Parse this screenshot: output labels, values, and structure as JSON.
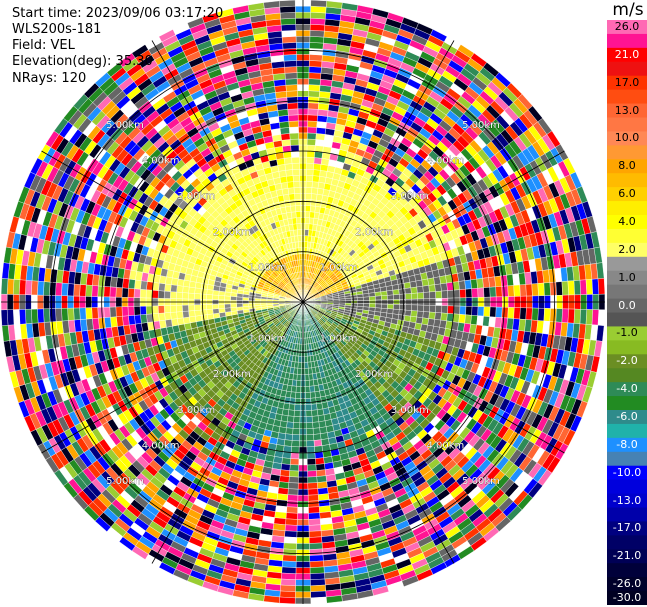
{
  "header": {
    "start_time": "Start time: 2023/09/06 03:17:20",
    "site": "WLS200s-181",
    "field": "Field: VEL",
    "elevation": "Elevation(deg): 35.30",
    "nrays": "NRays: 120"
  },
  "colorbar": {
    "unit": "m/s",
    "levels": [
      {
        "label": "26.0",
        "color": "#ff69b4"
      },
      {
        "label": "",
        "color": "#ff1493"
      },
      {
        "label": "21.0",
        "color": "#ff0000"
      },
      {
        "label": "",
        "color": "#ee1111"
      },
      {
        "label": "17.0",
        "color": "#ff3300"
      },
      {
        "label": "",
        "color": "#ff4d11"
      },
      {
        "label": "13.0",
        "color": "#ff6633"
      },
      {
        "label": "",
        "color": "#ff7744"
      },
      {
        "label": "10.0",
        "color": "#ff8855"
      },
      {
        "label": "",
        "color": "#ff9933"
      },
      {
        "label": "8.0",
        "color": "#ffa500"
      },
      {
        "label": "",
        "color": "#ffbb00"
      },
      {
        "label": "6.0",
        "color": "#ffd000"
      },
      {
        "label": "",
        "color": "#ffee00"
      },
      {
        "label": "4.0",
        "color": "#ffff00"
      },
      {
        "label": "",
        "color": "#ffff33"
      },
      {
        "label": "2.0",
        "color": "#ffff66"
      },
      {
        "label": "",
        "color": "#999999"
      },
      {
        "label": "1.0",
        "color": "#888888"
      },
      {
        "label": "",
        "color": "#777777"
      },
      {
        "label": "0.0",
        "color": "#666666"
      },
      {
        "label": "",
        "color": "#555555"
      },
      {
        "label": "-1.0",
        "color": "#9acd32"
      },
      {
        "label": "",
        "color": "#88bb22"
      },
      {
        "label": "-2.0",
        "color": "#6b8e23"
      },
      {
        "label": "",
        "color": "#558822"
      },
      {
        "label": "-4.0",
        "color": "#2e8b57"
      },
      {
        "label": "",
        "color": "#228b22"
      },
      {
        "label": "-6.0",
        "color": "#2e8b8b"
      },
      {
        "label": "",
        "color": "#20b2aa"
      },
      {
        "label": "-8.0",
        "color": "#1e90ff"
      },
      {
        "label": "",
        "color": "#4682b4"
      },
      {
        "label": "-10.0",
        "color": "#0000ff"
      },
      {
        "label": "",
        "color": "#0000dd"
      },
      {
        "label": "-13.0",
        "color": "#0000cd"
      },
      {
        "label": "",
        "color": "#0000aa"
      },
      {
        "label": "-17.0",
        "color": "#000080"
      },
      {
        "label": "",
        "color": "#000066"
      },
      {
        "label": "-21.0",
        "color": "#000055"
      },
      {
        "label": "",
        "color": "#00003a"
      },
      {
        "label": "-26.0",
        "color": "#00002a"
      },
      {
        "label": "-30.0",
        "color": "#000022"
      }
    ]
  },
  "chart_data": {
    "type": "heatmap",
    "title": "",
    "nrays": 120,
    "range_unit": "km",
    "max_range_km": 6,
    "range_rings_km": [
      1,
      2,
      3,
      4,
      5
    ],
    "ring_labels": [
      "1.00km",
      "2.00km",
      "3.00km",
      "4.00km",
      "5.00km"
    ],
    "spokes_deg": [
      0,
      30,
      60,
      90,
      120,
      150,
      180,
      210,
      240,
      270,
      300,
      330
    ],
    "velocity_field_summary": [
      {
        "region": "north sector near range (0-1 km)",
        "approx_ms": 8.0
      },
      {
        "region": "north sector 1-3 km",
        "approx_ms": 3.0
      },
      {
        "region": "east sector near range",
        "approx_ms": 0.0
      },
      {
        "region": "south sector near range",
        "approx_ms": -4.0
      },
      {
        "region": "south-west sector",
        "approx_ms": -1.5
      },
      {
        "region": "outer ranges (>3.5 km)",
        "approx_ms": "noise"
      }
    ]
  }
}
